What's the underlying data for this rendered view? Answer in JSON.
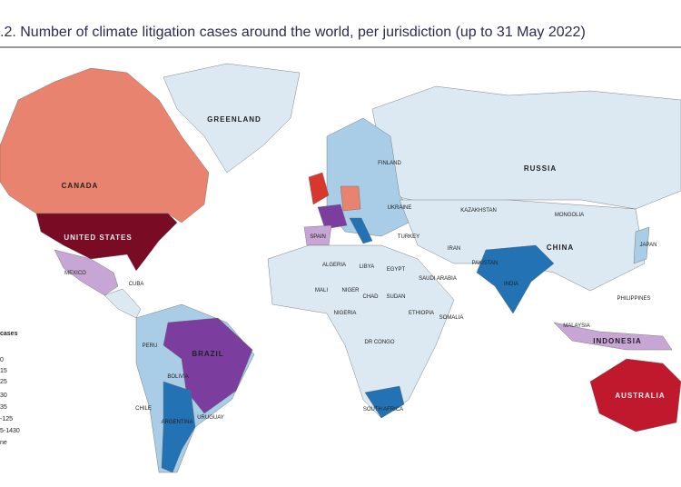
{
  "header": {
    "title": ".2. Number of climate litigation cases around the world, per jurisdiction (up to 31 May 2022)"
  },
  "country_labels": [
    "GREENLAND",
    "CANADA",
    "UNITED STATES",
    "MEXICO",
    "CUBA",
    "RUSSIA",
    "KAZAKHSTAN",
    "MONGOLIA",
    "CHINA",
    "JAPAN",
    "INDIA",
    "PAKISTAN",
    "IRAN",
    "TURKEY",
    "UKRAINE",
    "FINLAND",
    "SPAIN",
    "ALGERIA",
    "LIBYA",
    "EGYPT",
    "MALI",
    "NIGER",
    "CHAD",
    "SUDAN",
    "NIGERIA",
    "ETHIOPIA",
    "SOMALIA",
    "DR CONGO",
    "SAUDI ARABIA",
    "SOUTH AFRICA",
    "BRAZIL",
    "PERU",
    "BOLIVIA",
    "CHILE",
    "ARGENTINA",
    "URUGUAY",
    "INDONESIA",
    "PHILIPPINES",
    "MALAYSIA",
    "AUSTRALIA"
  ],
  "legend": {
    "title": "cases",
    "items": [
      "0",
      "15",
      "25",
      "30",
      "35",
      "-125",
      "5-1430",
      "ne"
    ]
  }
}
